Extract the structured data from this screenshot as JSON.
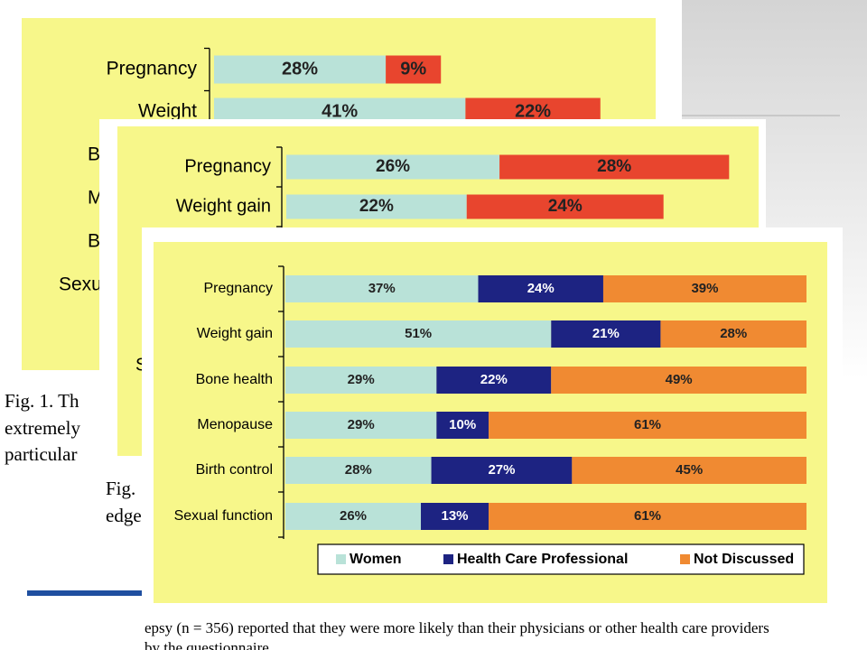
{
  "chart_data": [
    {
      "type": "stacked-bar-horizontal",
      "categories": [
        "Pregnancy",
        "Weight",
        "B",
        "M",
        "B",
        "Sexu"
      ],
      "series": [
        {
          "color": "#b9e2d8",
          "values": [
            28,
            41,
            null,
            null,
            null,
            null
          ],
          "value_labels": [
            "28%",
            "41%",
            null,
            null,
            null,
            null
          ]
        },
        {
          "color": "#e8452e",
          "values": [
            9,
            22,
            null,
            null,
            null,
            null
          ],
          "value_labels": [
            "9%",
            "22%",
            null,
            null,
            null,
            null
          ]
        }
      ],
      "caption": [
        "Fig. 1. Th",
        "extremely",
        "particular"
      ]
    },
    {
      "type": "stacked-bar-horizontal",
      "categories": [
        "Pregnancy",
        "Weight gain",
        null,
        null,
        null,
        "S"
      ],
      "series": [
        {
          "color": "#b9e2d8",
          "values": [
            26,
            22,
            null,
            null,
            null,
            null
          ],
          "value_labels": [
            "26%",
            "22%",
            null,
            null,
            null,
            null
          ]
        },
        {
          "color": "#e8452e",
          "values": [
            28,
            24,
            null,
            null,
            null,
            null
          ],
          "value_labels": [
            "28%",
            "24%",
            null,
            null,
            null,
            null
          ]
        }
      ],
      "caption": [
        "Fig.",
        "edge"
      ]
    },
    {
      "type": "stacked-bar-horizontal",
      "categories": [
        "Pregnancy",
        "Weight gain",
        "Bone health",
        "Menopause",
        "Birth control",
        "Sexual function"
      ],
      "series": [
        {
          "name": "Women",
          "color": "#b9e2d8",
          "values": [
            37,
            51,
            29,
            29,
            28,
            26
          ],
          "value_labels": [
            "37%",
            "51%",
            "29%",
            "29%",
            "28%",
            "26%"
          ]
        },
        {
          "name": "Health Care Professional",
          "color": "#1d2382",
          "values": [
            24,
            21,
            22,
            10,
            27,
            13
          ],
          "value_labels": [
            "24%",
            "21%",
            "22%",
            "10%",
            "27%",
            "13%"
          ]
        },
        {
          "name": "Not Discussed",
          "color": "#f08a32",
          "values": [
            39,
            28,
            49,
            61,
            45,
            61
          ],
          "value_labels": [
            "39%",
            "28%",
            "49%",
            "61%",
            "45%",
            "61%"
          ]
        }
      ],
      "legend": "bottom"
    }
  ],
  "body_text": [
    "epsy (n = 356) reported that they were more likely than their physicians or other health care providers",
    "by the questionnaire"
  ]
}
